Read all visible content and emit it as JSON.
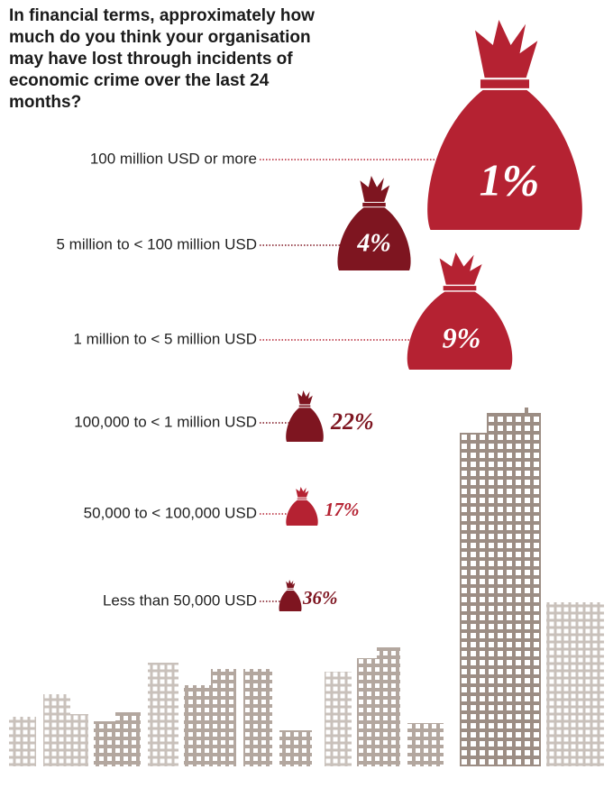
{
  "chart_data": {
    "type": "pictogram",
    "title": "In financial terms, approximately how much do you think your organisation may have lost through incidents of economic crime over the last 24 months?",
    "categories": [
      "100 million USD or more",
      "5 million to < 100 million USD",
      "1 million to < 5 million USD",
      "100,000 to < 1 million USD",
      "50,000 to < 100,000 USD",
      "Less than 50,000 USD"
    ],
    "values": [
      1,
      4,
      9,
      22,
      17,
      36
    ],
    "value_labels": [
      "1%",
      "4%",
      "9%",
      "22%",
      "17%",
      "36%"
    ],
    "colors": [
      "#b52232",
      "#7e1520",
      "#b52232",
      "#7e1520",
      "#b52232",
      "#7e1520"
    ]
  }
}
